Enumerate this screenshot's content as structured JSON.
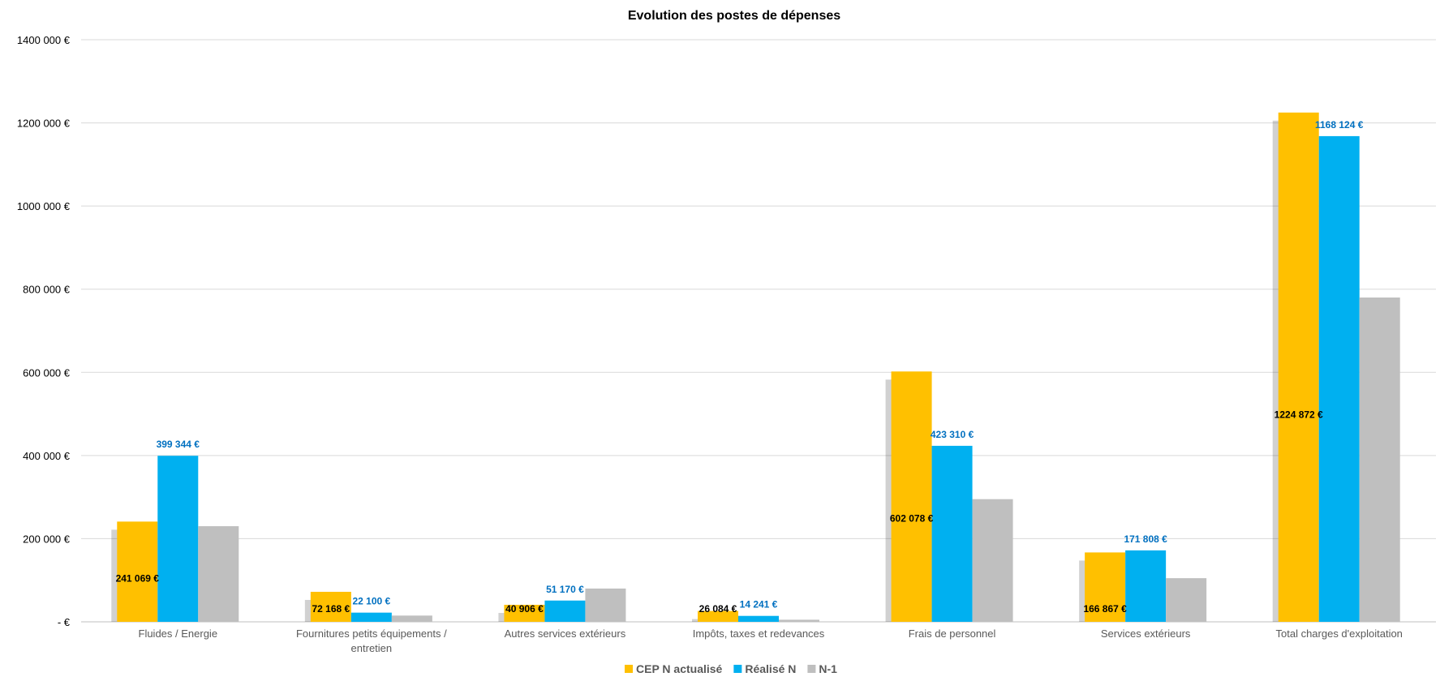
{
  "chart_data": {
    "type": "bar",
    "title": "Evolution des postes de dépenses",
    "xlabel": "",
    "ylabel": "",
    "ylim": [
      0,
      1400000
    ],
    "yticks": [
      0,
      200000,
      400000,
      600000,
      800000,
      1000000,
      1200000,
      1400000
    ],
    "ytick_labels": [
      "-  €",
      "200 000  €",
      "400 000  €",
      "600 000  €",
      "800 000  €",
      "1000 000  €",
      "1200 000  €",
      "1400 000  €"
    ],
    "grid": true,
    "legend_position": "bottom",
    "categories": [
      "Fluides / Energie",
      "Fournitures petits équipements / entretien",
      "Autres services extérieurs",
      "Impôts, taxes et redevances",
      "Frais de personnel",
      "Services extérieurs",
      "Total charges d'exploitation"
    ],
    "category_lines": [
      [
        "Fluides / Energie"
      ],
      [
        "Fournitures petits équipements /",
        "entretien"
      ],
      [
        "Autres services extérieurs"
      ],
      [
        "Impôts, taxes et redevances"
      ],
      [
        "Frais de personnel"
      ],
      [
        "Services extérieurs"
      ],
      [
        "Total charges d'exploitation"
      ]
    ],
    "series": [
      {
        "name": "CEP N actualisé",
        "color": "#FFC000",
        "values": [
          241069,
          72168,
          40906,
          26084,
          602078,
          166867,
          1224872
        ],
        "labels": [
          "241 069  €",
          "72 168  €",
          "40 906  €",
          "26 084  €",
          "602 078  €",
          "166 867  €",
          "1224 872  €"
        ],
        "label_color": "#000000"
      },
      {
        "name": "Réalisé N",
        "color": "#00B0F0",
        "values": [
          399344,
          22100,
          51170,
          14241,
          423310,
          171808,
          1168124
        ],
        "labels": [
          "399 344  €",
          "22 100  €",
          "51 170  €",
          "14 241  €",
          "423 310  €",
          "171 808  €",
          "1168 124  €"
        ],
        "label_color": "#0070C0"
      },
      {
        "name": "N-1",
        "color": "#BFBFBF",
        "values": [
          230000,
          15000,
          80000,
          5000,
          295000,
          105000,
          780000
        ],
        "labels": null,
        "label_color": null
      }
    ]
  }
}
